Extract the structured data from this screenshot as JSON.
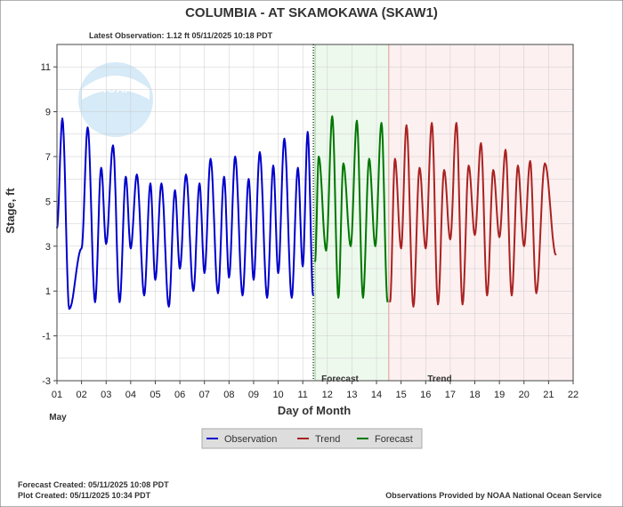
{
  "chart_data": {
    "type": "line",
    "title": "COLUMBIA - AT SKAMOKAWA  (SKAW1)",
    "subtitle": "Latest Observation: 1.12 ft 05/11/2025 10:18 PDT",
    "xlabel": "Day of Month",
    "ylabel": "Stage, ft",
    "month_label": "May",
    "xlim": [
      1,
      22
    ],
    "ylim": [
      -3,
      12
    ],
    "x_ticks": [
      "01",
      "02",
      "03",
      "04",
      "05",
      "06",
      "07",
      "08",
      "09",
      "10",
      "11",
      "12",
      "13",
      "14",
      "15",
      "16",
      "17",
      "18",
      "19",
      "20",
      "21",
      "22"
    ],
    "y_ticks": [
      -3,
      -1,
      1,
      3,
      5,
      7,
      9,
      11
    ],
    "grid": true,
    "logo_text": "NOAA",
    "latest_observation_day": 11.43,
    "regions": [
      {
        "label": "Forecast",
        "from": 11.5,
        "to": 14.5,
        "color": "#eef9ee"
      },
      {
        "label": "Trend",
        "from": 14.5,
        "to": 22,
        "color": "#fdf0f0"
      }
    ],
    "series": [
      {
        "name": "Observation",
        "color": "#0000cc",
        "peaks": [
          [
            1.22,
            8.7
          ],
          [
            2.25,
            8.3
          ],
          [
            2.8,
            6.5
          ],
          [
            3.28,
            7.5
          ],
          [
            3.8,
            6.1
          ],
          [
            4.25,
            6.2
          ],
          [
            4.8,
            5.8
          ],
          [
            5.25,
            5.8
          ],
          [
            5.8,
            5.5
          ],
          [
            6.25,
            6.2
          ],
          [
            6.8,
            5.8
          ],
          [
            7.25,
            6.9
          ],
          [
            7.8,
            6.1
          ],
          [
            8.25,
            7.0
          ],
          [
            8.8,
            6.0
          ],
          [
            9.25,
            7.2
          ],
          [
            9.8,
            6.6
          ],
          [
            10.25,
            7.8
          ],
          [
            10.8,
            6.5
          ],
          [
            11.2,
            8.1
          ]
        ],
        "troughs": [
          [
            1.0,
            3.8
          ],
          [
            1.5,
            0.2
          ],
          [
            2.0,
            2.9
          ],
          [
            2.55,
            0.5
          ],
          [
            3.0,
            3.1
          ],
          [
            3.55,
            0.5
          ],
          [
            4.0,
            2.9
          ],
          [
            4.55,
            0.8
          ],
          [
            5.0,
            1.5
          ],
          [
            5.55,
            0.3
          ],
          [
            6.0,
            2.0
          ],
          [
            6.55,
            1.0
          ],
          [
            7.0,
            1.8
          ],
          [
            7.55,
            0.9
          ],
          [
            8.0,
            1.6
          ],
          [
            8.55,
            0.8
          ],
          [
            9.0,
            1.5
          ],
          [
            9.55,
            0.7
          ],
          [
            10.0,
            1.8
          ],
          [
            10.55,
            0.7
          ],
          [
            11.0,
            2.1
          ],
          [
            11.42,
            0.8
          ]
        ]
      },
      {
        "name": "Trend",
        "color": "#aa2222",
        "peaks": [
          [
            14.75,
            6.9
          ],
          [
            15.22,
            8.4
          ],
          [
            15.75,
            6.5
          ],
          [
            16.25,
            8.5
          ],
          [
            16.75,
            6.4
          ],
          [
            17.25,
            8.5
          ],
          [
            17.75,
            6.6
          ],
          [
            18.25,
            7.6
          ],
          [
            18.75,
            6.4
          ],
          [
            19.25,
            7.3
          ],
          [
            19.75,
            6.6
          ],
          [
            20.25,
            6.8
          ],
          [
            20.85,
            6.7
          ]
        ],
        "troughs": [
          [
            14.55,
            0.5
          ],
          [
            15.0,
            2.9
          ],
          [
            15.5,
            0.3
          ],
          [
            16.0,
            2.9
          ],
          [
            16.5,
            0.4
          ],
          [
            17.0,
            3.3
          ],
          [
            17.5,
            0.4
          ],
          [
            18.0,
            3.5
          ],
          [
            18.5,
            0.8
          ],
          [
            19.0,
            3.4
          ],
          [
            19.5,
            0.8
          ],
          [
            20.0,
            3.0
          ],
          [
            20.5,
            0.9
          ],
          [
            21.3,
            2.6
          ]
        ]
      },
      {
        "name": "Forecast",
        "color": "#007700",
        "peaks": [
          [
            11.65,
            7.0
          ],
          [
            12.2,
            8.8
          ],
          [
            12.65,
            6.7
          ],
          [
            13.2,
            8.6
          ],
          [
            13.7,
            6.9
          ],
          [
            14.2,
            8.5
          ]
        ],
        "troughs": [
          [
            11.5,
            2.3
          ],
          [
            11.95,
            2.8
          ],
          [
            12.45,
            0.7
          ],
          [
            12.95,
            3.0
          ],
          [
            13.45,
            0.7
          ],
          [
            13.95,
            3.0
          ],
          [
            14.45,
            0.5
          ]
        ]
      }
    ],
    "legend_position": "bottom-center"
  },
  "footer": {
    "forecast_created": "Forecast Created: 05/11/2025 10:08 PDT",
    "plot_created": "Plot Created: 05/11/2025 10:34 PDT",
    "credit": "Observations Provided by NOAA National Ocean Service"
  }
}
